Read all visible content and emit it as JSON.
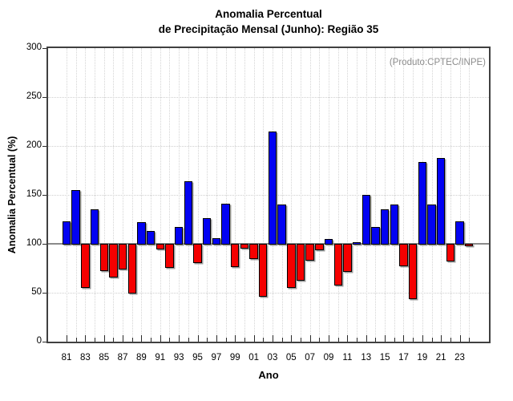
{
  "chart_data": {
    "type": "bar",
    "title": "Anomalia Percentual",
    "subtitle": "de Precipitação Mensal (Junho): Região 35",
    "xlabel": "Ano",
    "ylabel": "Anomalia Percentual (%)",
    "annotation": "(Produto:CPTEC/INPE)",
    "ylim": [
      0,
      300
    ],
    "yticks": [
      0,
      50,
      100,
      150,
      200,
      250,
      300
    ],
    "gridline_values": [
      50,
      150,
      200,
      250
    ],
    "baseline": 100,
    "grid": true,
    "legend_position": "none",
    "positive_color": "#0202f2",
    "negative_color": "#f50000",
    "baseline_color": "#8a8a8a",
    "categories": [
      "81",
      "82",
      "83",
      "84",
      "85",
      "86",
      "87",
      "88",
      "89",
      "90",
      "91",
      "92",
      "93",
      "94",
      "95",
      "96",
      "97",
      "98",
      "99",
      "00",
      "01",
      "02",
      "03",
      "04",
      "05",
      "06",
      "07",
      "08",
      "09",
      "10",
      "11",
      "12",
      "13",
      "14",
      "15",
      "16",
      "17",
      "18",
      "19",
      "20",
      "21",
      "22",
      "23",
      "24"
    ],
    "labeled_categories": [
      "81",
      "83",
      "85",
      "87",
      "89",
      "91",
      "93",
      "95",
      "97",
      "99",
      "01",
      "03",
      "05",
      "07",
      "09",
      "11",
      "13",
      "15",
      "17",
      "19",
      "21",
      "23"
    ],
    "values": [
      123,
      155,
      56,
      135,
      73,
      66,
      75,
      50,
      122,
      113,
      95,
      76,
      117,
      164,
      81,
      126,
      106,
      141,
      77,
      96,
      85,
      47,
      215,
      140,
      56,
      63,
      84,
      94,
      105,
      58,
      72,
      102,
      150,
      117,
      135,
      140,
      78,
      44,
      184,
      140,
      188,
      83,
      123,
      98
    ]
  }
}
